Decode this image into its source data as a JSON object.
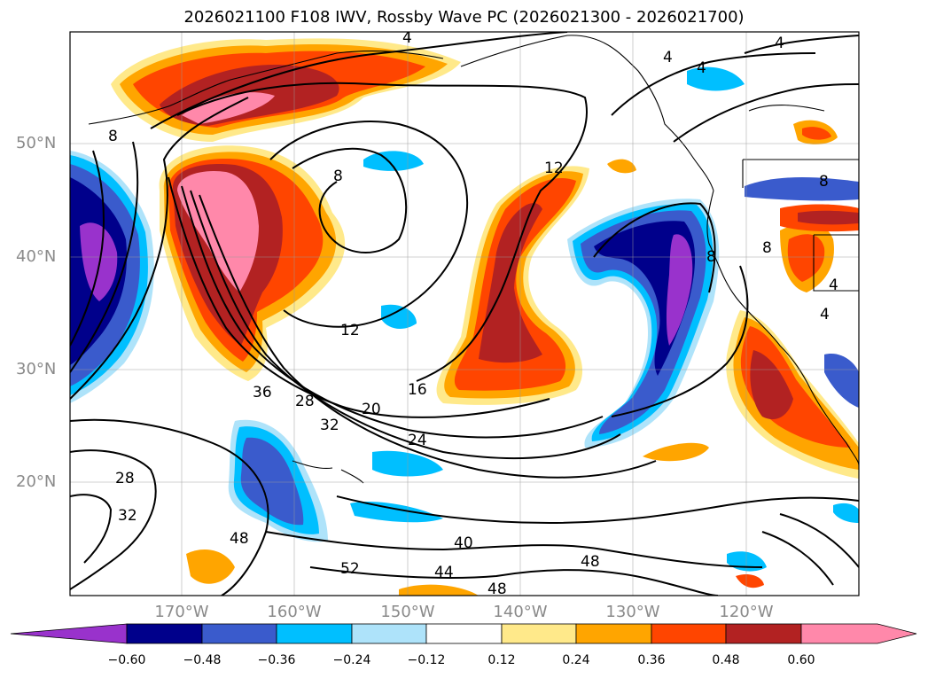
{
  "title": "2026021100 F108 IWV, Rossby Wave PC (2026021300 - 2026021700)",
  "map": {
    "lat_labels": [
      "50°N",
      "40°N",
      "30°N",
      "20°N"
    ],
    "lon_labels": [
      "170°W",
      "160°W",
      "150°W",
      "140°W",
      "130°W",
      "120°W"
    ],
    "contour_labels": [
      "4",
      "4",
      "4",
      "4",
      "8",
      "8",
      "8",
      "8",
      "12",
      "12",
      "16",
      "20",
      "24",
      "28",
      "28",
      "32",
      "32",
      "36",
      "40",
      "44",
      "48",
      "48",
      "48",
      "52",
      "4",
      "4",
      "8"
    ]
  },
  "colorbar": {
    "tick_labels": [
      "−0.60",
      "−0.48",
      "−0.36",
      "−0.24",
      "−0.12",
      "0.12",
      "0.24",
      "0.36",
      "0.48",
      "0.60"
    ],
    "colors": [
      "#9932CC",
      "#00008B",
      "#3A5BCC",
      "#00BFFF",
      "#AEE3FA",
      "#FFFFFF",
      "#FFE98A",
      "#FFA500",
      "#FF4500",
      "#B22222",
      "#FF88AA"
    ]
  }
}
